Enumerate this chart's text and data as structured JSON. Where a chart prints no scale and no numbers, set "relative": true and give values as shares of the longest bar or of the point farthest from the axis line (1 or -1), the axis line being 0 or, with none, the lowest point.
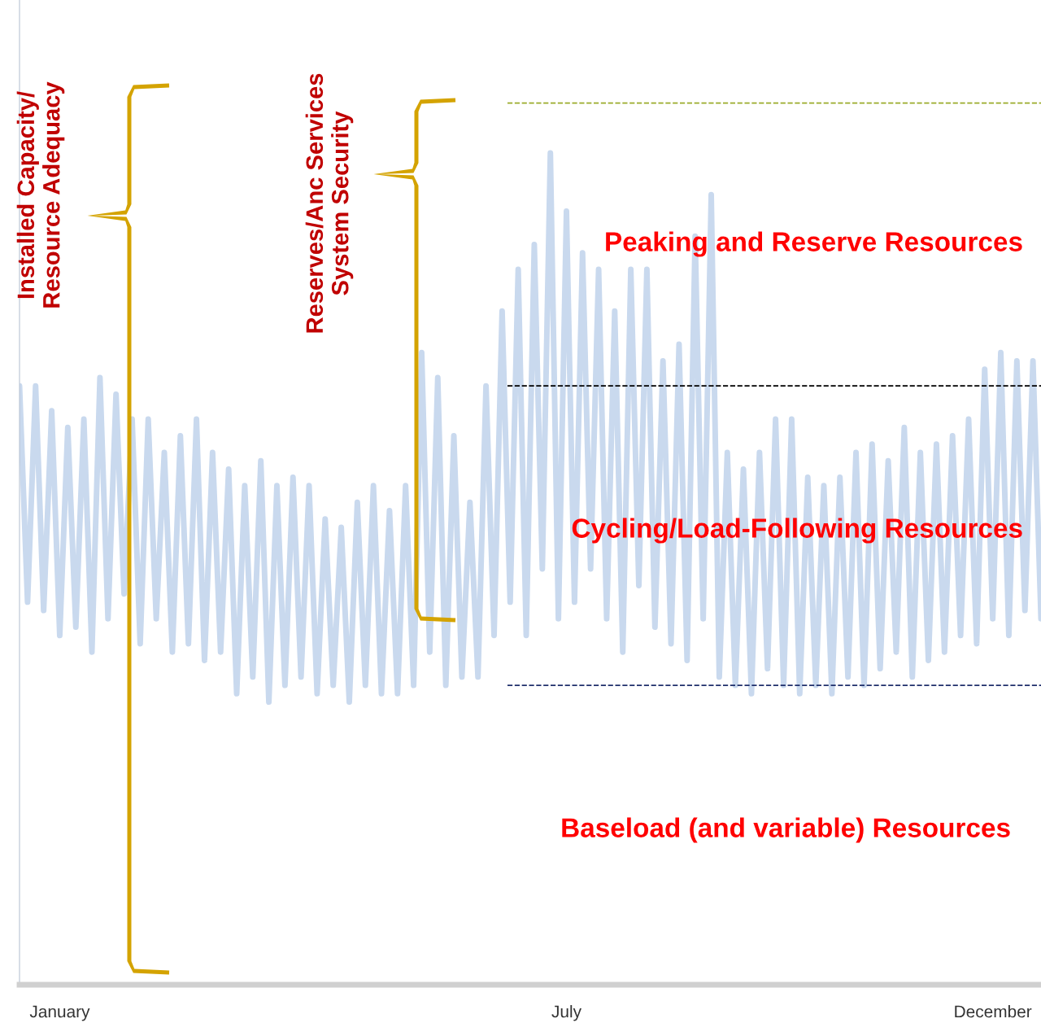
{
  "chart_data": {
    "type": "line",
    "relative": true,
    "categories": [
      null,
      null,
      null,
      null,
      null,
      "January",
      null,
      null,
      null,
      null,
      null,
      null,
      null,
      null,
      null,
      null,
      null,
      null,
      null,
      null,
      null,
      null,
      null,
      null,
      null,
      null,
      null,
      null,
      null,
      null,
      null,
      null,
      null,
      null,
      null,
      null,
      null,
      null,
      null,
      null,
      null,
      null,
      null,
      null,
      null,
      null,
      null,
      null,
      null,
      null,
      null,
      null,
      null,
      null,
      null,
      null,
      null,
      null,
      null,
      null,
      null,
      null,
      null,
      null,
      null,
      null,
      null,
      null,
      "July",
      null,
      null,
      null,
      null,
      null,
      null,
      null,
      null,
      null,
      null,
      null,
      null,
      null,
      null,
      null,
      null,
      null,
      null,
      null,
      null,
      null,
      null,
      null,
      null,
      null,
      null,
      null,
      null,
      null,
      null,
      null,
      null,
      null,
      null,
      null,
      null,
      null,
      null,
      null,
      null,
      null,
      null,
      null,
      null,
      null,
      null,
      null,
      null,
      null,
      null,
      null,
      null,
      "December",
      null,
      null,
      null,
      null,
      null,
      null
    ],
    "series": [
      {
        "color": "#c9d9ee",
        "values": [
          0.72,
          0.46,
          0.72,
          0.45,
          0.69,
          0.42,
          0.67,
          0.43,
          0.68,
          0.4,
          0.73,
          0.44,
          0.71,
          0.47,
          0.68,
          0.41,
          0.68,
          0.44,
          0.64,
          0.4,
          0.66,
          0.41,
          0.68,
          0.39,
          0.64,
          0.4,
          0.62,
          0.35,
          0.6,
          0.37,
          0.63,
          0.34,
          0.6,
          0.36,
          0.61,
          0.37,
          0.6,
          0.35,
          0.56,
          0.36,
          0.55,
          0.34,
          0.58,
          0.36,
          0.6,
          0.35,
          0.57,
          0.35,
          0.6,
          0.36,
          0.76,
          0.4,
          0.73,
          0.36,
          0.66,
          0.37,
          0.58,
          0.37,
          0.72,
          0.42,
          0.81,
          0.46,
          0.86,
          0.42,
          0.89,
          0.5,
          1.0,
          0.44,
          0.93,
          0.46,
          0.88,
          0.5,
          0.86,
          0.44,
          0.81,
          0.4,
          0.86,
          0.48,
          0.86,
          0.43,
          0.75,
          0.41,
          0.77,
          0.39,
          0.9,
          0.44,
          0.95,
          0.37,
          0.64,
          0.36,
          0.62,
          0.35,
          0.64,
          0.38,
          0.68,
          0.36,
          0.68,
          0.35,
          0.61,
          0.36,
          0.6,
          0.35,
          0.61,
          0.37,
          0.64,
          0.36,
          0.65,
          0.38,
          0.63,
          0.4,
          0.67,
          0.37,
          0.64,
          0.39,
          0.65,
          0.4,
          0.66,
          0.42,
          0.68,
          0.41,
          0.74,
          0.44,
          0.76,
          0.42,
          0.75,
          0.45,
          0.75,
          0.44
        ]
      }
    ],
    "ref_lines": [
      {
        "axis": "y",
        "value": 1.06,
        "color": "#9aab2a",
        "line_style": "dashed"
      },
      {
        "axis": "y",
        "value": 0.72,
        "color": "#000000",
        "line_style": "dashed"
      },
      {
        "axis": "y",
        "value": 0.36,
        "color": "#1f2f6b",
        "line_style": "dashed"
      }
    ],
    "annotations": [
      "Installed Capacity/\nResource Adequacy",
      "Reserves/Anc Services\nSystem Security",
      "Peaking and Reserve Resources",
      "Cycling/Load-Following Resources",
      "Baseload (and variable) Resources"
    ]
  }
}
